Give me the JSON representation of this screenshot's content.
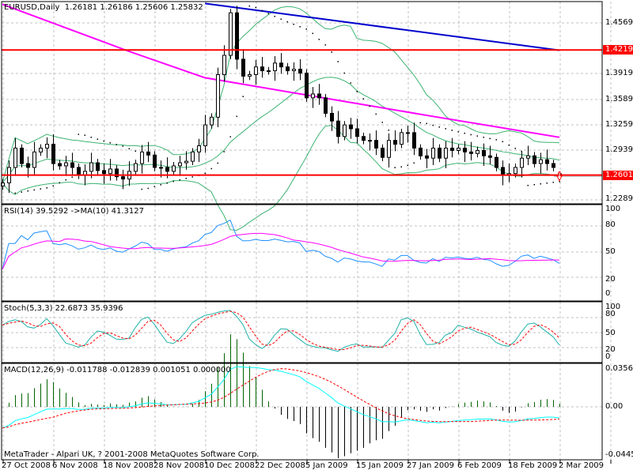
{
  "header": {
    "symbol_tf": "EURUSD,Daily",
    "ohlc": "1.26181 1.26186 1.25606 1.25832"
  },
  "rsi_title": "RSI(14) 39.5292  ->MA(10) 41.3127",
  "stoch_title": "Stoch(5,3,3) 22.6873 35.9396",
  "macd_title": "MACD(12,26,9) -0.011788 -0.012839 0.001051 0.000000",
  "copyright": "MetaTrader - Alpari UK, ? 2001-2008 MetaQuotes Software Corp.",
  "price_axis": [
    "1.45690",
    "1.39190",
    "1.35890",
    "1.32590",
    "1.29390",
    "1.22890"
  ],
  "price_tags": [
    "1.42192",
    "1.26012"
  ],
  "rsi_axis": [
    "100",
    "80",
    "50",
    "20",
    "0"
  ],
  "stoch_axis": [
    "100",
    "80",
    "50",
    "20",
    "0"
  ],
  "macd_axis": [
    "0.035695",
    "0.00",
    "-0.04458"
  ],
  "colors": {
    "rsi": "#1e90ff",
    "rsi_ma": "#ff00ff",
    "stoch_main": "#20b2aa",
    "stoch_signal": "#ff0000",
    "macd_main": "#00ffff",
    "macd_signal": "#ff0000",
    "bands": "#3cb371",
    "ma_slow": "#0000cd",
    "ma_mid": "#ff00ff",
    "hline": "#ff0000"
  },
  "chart_data": {
    "type": "candlestick",
    "title": "EURUSD,Daily",
    "x_tick_labels": [
      "27 Oct 2008",
      "6 Nov 2008",
      "18 Nov 2008",
      "28 Nov 2008",
      "10 Dec 2008",
      "22 Dec 2008",
      "5 Jan 2009",
      "15 Jan 2009",
      "27 Jan 2009",
      "6 Feb 2009",
      "18 Feb 2009",
      "2 Mar 2009"
    ],
    "bars_per_tick": 8,
    "ylim": [
      1.2289,
      1.4869
    ],
    "closes": [
      1.25,
      1.27,
      1.295,
      1.275,
      1.27,
      1.29,
      1.295,
      1.3,
      1.275,
      1.272,
      1.276,
      1.27,
      1.26,
      1.265,
      1.276,
      1.266,
      1.262,
      1.268,
      1.258,
      1.255,
      1.265,
      1.275,
      1.29,
      1.286,
      1.27,
      1.27,
      1.265,
      1.272,
      1.276,
      1.278,
      1.29,
      1.298,
      1.325,
      1.335,
      1.39,
      1.415,
      1.47,
      1.41,
      1.388,
      1.39,
      1.4,
      1.395,
      1.395,
      1.405,
      1.4,
      1.395,
      1.397,
      1.392,
      1.36,
      1.365,
      1.36,
      1.34,
      1.33,
      1.31,
      1.325,
      1.32,
      1.31,
      1.305,
      1.305,
      1.295,
      1.283,
      1.305,
      1.3,
      1.315,
      1.315,
      1.295,
      1.285,
      1.282,
      1.295,
      1.282,
      1.295,
      1.292,
      1.295,
      1.29,
      1.288,
      1.292,
      1.285,
      1.283,
      1.27,
      1.26,
      1.262,
      1.27,
      1.282,
      1.285,
      1.275,
      1.28,
      1.275,
      1.27,
      1.2583
    ],
    "last_bar": {
      "open": 1.26181,
      "high": 1.26186,
      "low": 1.25606,
      "close": 1.25832
    },
    "slow_ma_points": {
      "bar_index": [
        32,
        88
      ],
      "value": [
        1.482,
        1.4215
      ]
    },
    "mid_ma_points": {
      "bar_index": [
        0,
        20,
        32,
        50,
        68,
        88
      ],
      "value": [
        1.481,
        1.4201,
        1.386,
        1.361,
        1.336,
        1.309
      ]
    },
    "hlines": [
      1.42192,
      1.26012
    ]
  }
}
